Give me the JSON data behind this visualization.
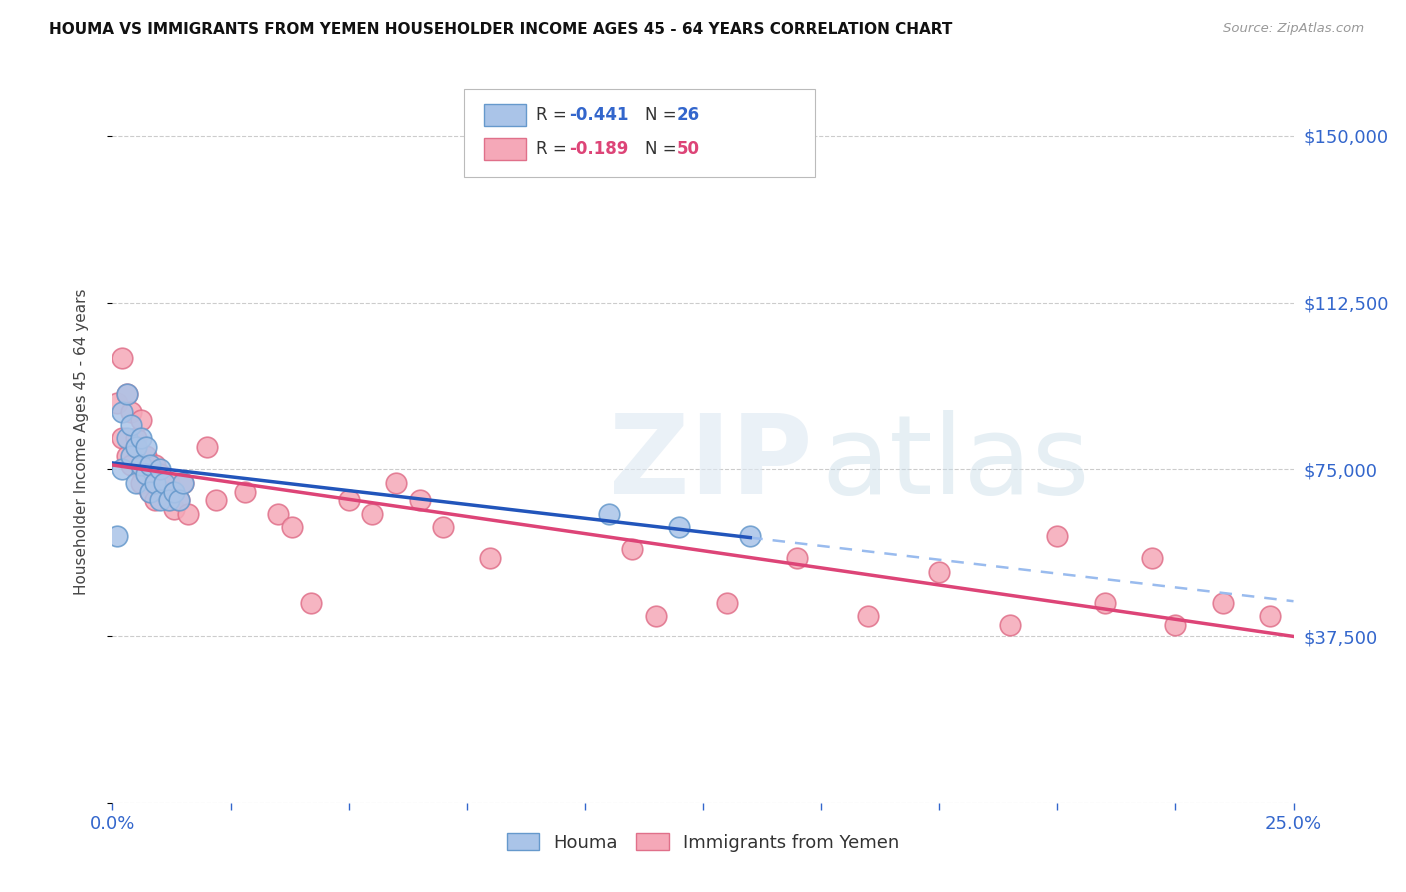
{
  "title": "HOUMA VS IMMIGRANTS FROM YEMEN HOUSEHOLDER INCOME AGES 45 - 64 YEARS CORRELATION CHART",
  "source": "Source: ZipAtlas.com",
  "ylabel": "Householder Income Ages 45 - 64 years",
  "xlim": [
    0,
    0.25
  ],
  "ylim": [
    0,
    162500
  ],
  "xticks": [
    0.0,
    0.025,
    0.05,
    0.075,
    0.1,
    0.125,
    0.15,
    0.175,
    0.2,
    0.225,
    0.25
  ],
  "yticks": [
    0,
    37500,
    75000,
    112500,
    150000
  ],
  "grid_color": "#cccccc",
  "background_color": "#ffffff",
  "houma_color": "#aac4e8",
  "houma_edge_color": "#6699cc",
  "yemen_color": "#f5a8b8",
  "yemen_edge_color": "#e0708a",
  "houma_R": -0.441,
  "houma_N": 26,
  "yemen_R": -0.189,
  "yemen_N": 50,
  "houma_line_color": "#2255bb",
  "yemen_line_color": "#dd4477",
  "dashed_line_color": "#99bbee",
  "legend_label_houma": "Houma",
  "legend_label_yemen": "Immigrants from Yemen",
  "houma_x": [
    0.001,
    0.002,
    0.002,
    0.003,
    0.003,
    0.004,
    0.004,
    0.005,
    0.005,
    0.006,
    0.006,
    0.007,
    0.007,
    0.008,
    0.008,
    0.009,
    0.01,
    0.01,
    0.011,
    0.012,
    0.013,
    0.014,
    0.015,
    0.105,
    0.12,
    0.135
  ],
  "houma_y": [
    60000,
    75000,
    88000,
    82000,
    92000,
    78000,
    85000,
    72000,
    80000,
    76000,
    82000,
    74000,
    80000,
    70000,
    76000,
    72000,
    68000,
    75000,
    72000,
    68000,
    70000,
    68000,
    72000,
    65000,
    62000,
    60000
  ],
  "yemen_x": [
    0.001,
    0.002,
    0.002,
    0.003,
    0.003,
    0.004,
    0.004,
    0.005,
    0.005,
    0.006,
    0.006,
    0.007,
    0.007,
    0.008,
    0.009,
    0.009,
    0.01,
    0.011,
    0.012,
    0.012,
    0.013,
    0.013,
    0.014,
    0.015,
    0.016,
    0.02,
    0.022,
    0.028,
    0.035,
    0.038,
    0.042,
    0.05,
    0.055,
    0.06,
    0.065,
    0.07,
    0.08,
    0.11,
    0.115,
    0.13,
    0.145,
    0.16,
    0.175,
    0.19,
    0.2,
    0.21,
    0.22,
    0.225,
    0.235,
    0.245
  ],
  "yemen_y": [
    90000,
    100000,
    82000,
    92000,
    78000,
    88000,
    76000,
    82000,
    80000,
    86000,
    72000,
    78000,
    74000,
    70000,
    76000,
    68000,
    74000,
    70000,
    68000,
    72000,
    66000,
    70000,
    68000,
    72000,
    65000,
    80000,
    68000,
    70000,
    65000,
    62000,
    45000,
    68000,
    65000,
    72000,
    68000,
    62000,
    55000,
    57000,
    42000,
    45000,
    55000,
    42000,
    52000,
    40000,
    60000,
    45000,
    55000,
    40000,
    45000,
    42000
  ]
}
